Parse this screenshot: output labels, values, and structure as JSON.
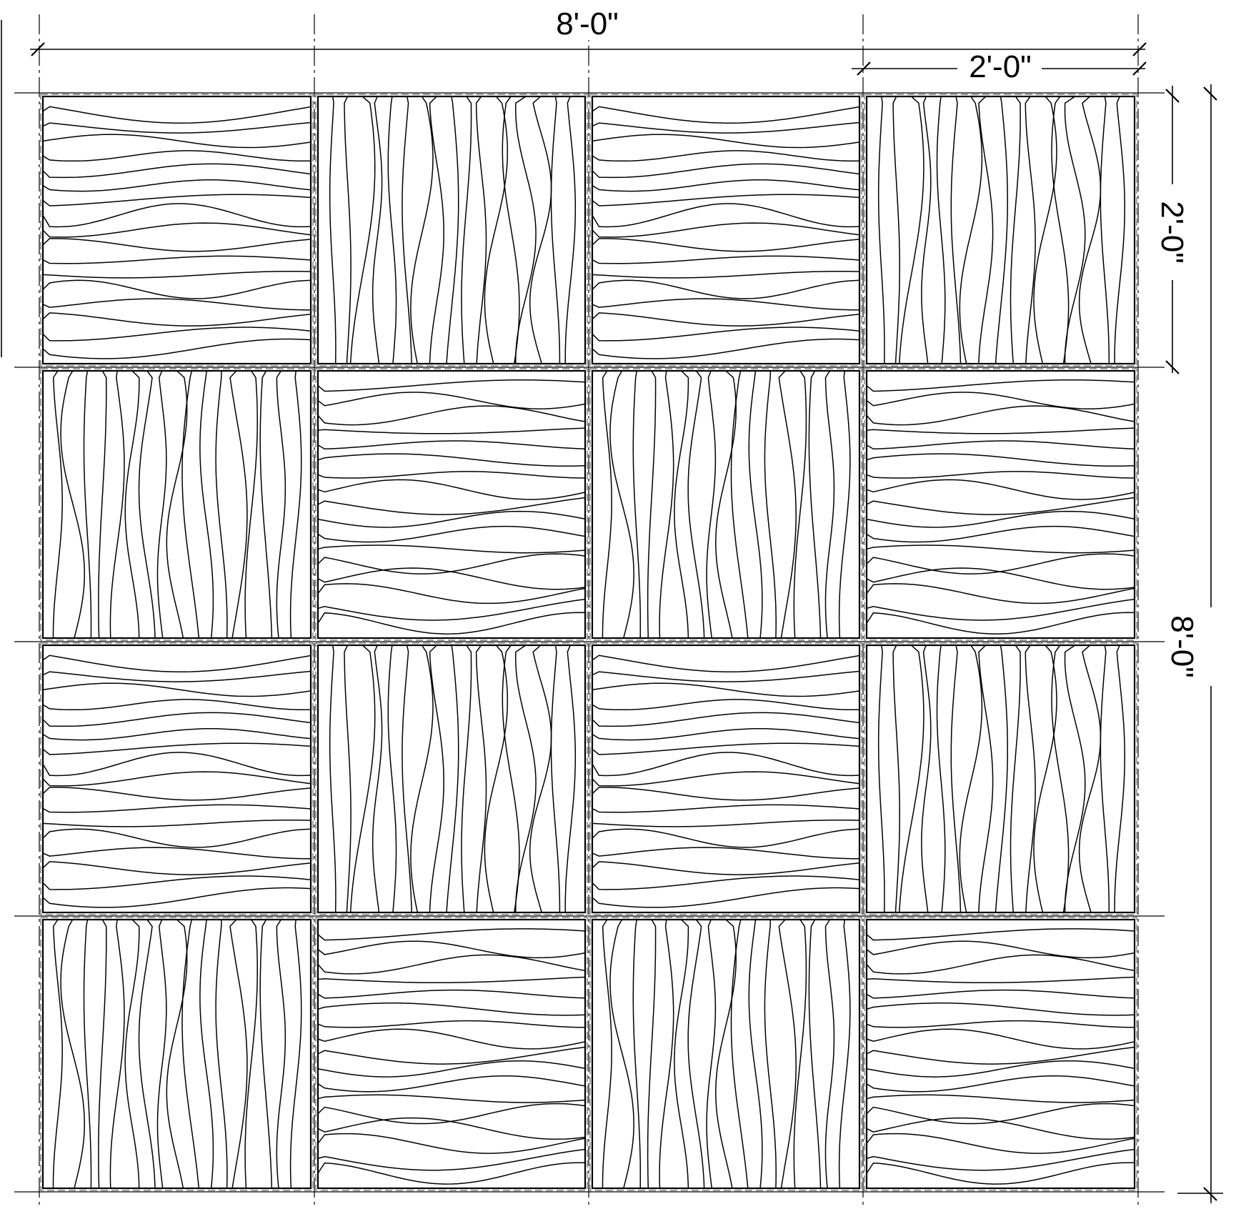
{
  "dimensions": {
    "overall_width": "8'-0\"",
    "panel_width": "2'-0\"",
    "panel_height": "2'-0\"",
    "overall_height": "8'-0\""
  },
  "panels": {
    "rows": 4,
    "cols": 4,
    "pattern": [
      [
        "horizontal",
        "vertical",
        "horizontal",
        "vertical"
      ],
      [
        "vertical",
        "horizontal",
        "vertical",
        "horizontal"
      ],
      [
        "horizontal",
        "vertical",
        "horizontal",
        "vertical"
      ],
      [
        "vertical",
        "horizontal",
        "vertical",
        "horizontal"
      ]
    ]
  }
}
